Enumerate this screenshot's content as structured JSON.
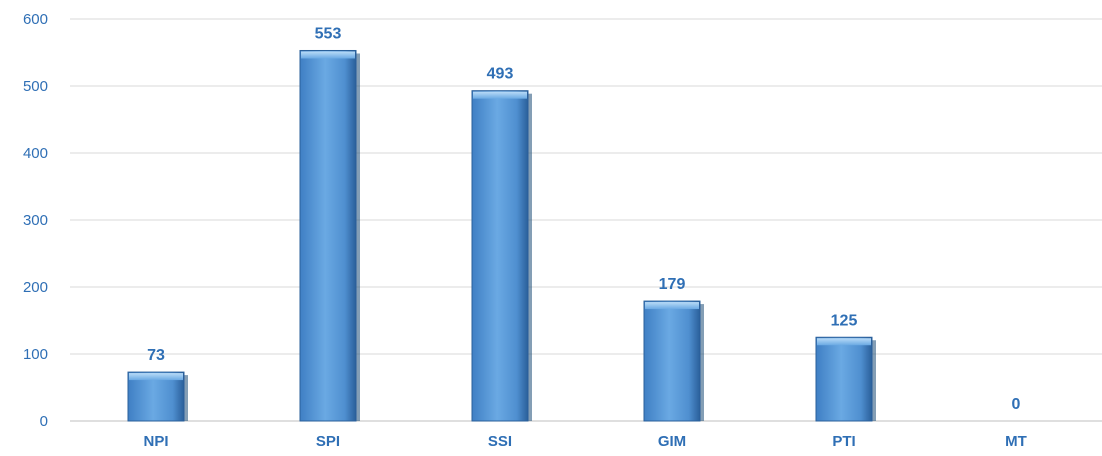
{
  "chart_data": {
    "type": "bar",
    "categories": [
      "NPI",
      "SPI",
      "SSI",
      "GIM",
      "PTI",
      "MT"
    ],
    "values": [
      73,
      553,
      493,
      179,
      125,
      0
    ],
    "data_labels": [
      "73",
      "553",
      "493",
      "179",
      "125",
      "0"
    ],
    "title": "",
    "xlabel": "",
    "ylabel": "",
    "ylim": [
      0,
      600
    ],
    "yticks": [
      0,
      100,
      200,
      300,
      400,
      500,
      600
    ],
    "ytick_labels": [
      "0",
      "100",
      "200",
      "300",
      "400",
      "500",
      "600"
    ],
    "grid": true,
    "legend": "none",
    "bar_color": "#5b9bd5",
    "bar_highlight": "#9cc8f0",
    "bar_shadow": "#1f4e79",
    "label_color": "#2f6fb5",
    "grid_color": "#d9d9d9"
  }
}
